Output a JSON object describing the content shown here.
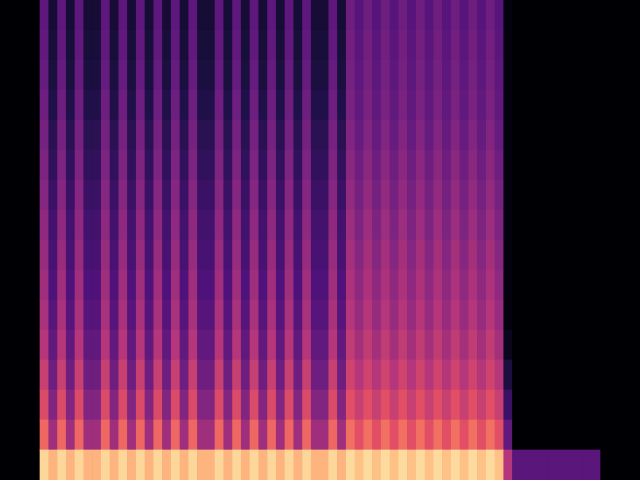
{
  "chart_data": {
    "type": "heatmap",
    "xlim": [
      0,
      64
    ],
    "ylim": [
      0,
      16
    ],
    "tick_labels": false,
    "grid": false,
    "color_range": [
      0,
      1
    ],
    "cells": [
      [
        0.92,
        0.85,
        0.92,
        0.85,
        0.92,
        0.85,
        0.85,
        0.92,
        0.85,
        0.92,
        0.85,
        0.92,
        0.85,
        0.92,
        0.85,
        0.92,
        0.85,
        0.92,
        0.85,
        0.85,
        0.92,
        0.85,
        0.92,
        0.85,
        0.92,
        0.85,
        0.92,
        0.85,
        0.92,
        0.85,
        0.92,
        0.85,
        0.85,
        0.92,
        0.85,
        0.93,
        0.88,
        0.93,
        0.88,
        0.93,
        0.88,
        0.93,
        0.88,
        0.93,
        0.88,
        0.93,
        0.88,
        0.93,
        0.88,
        0.93,
        0.88,
        0.93,
        0.88,
        0.5,
        0.28,
        0.28,
        0.28,
        0.28,
        0.28,
        0.28,
        0.28,
        0.28,
        0.28,
        0.28
      ],
      [
        0.68,
        0.45,
        0.68,
        0.45,
        0.68,
        0.45,
        0.45,
        0.68,
        0.45,
        0.68,
        0.45,
        0.68,
        0.45,
        0.68,
        0.45,
        0.68,
        0.45,
        0.68,
        0.45,
        0.45,
        0.68,
        0.45,
        0.68,
        0.45,
        0.68,
        0.45,
        0.68,
        0.45,
        0.68,
        0.45,
        0.68,
        0.45,
        0.45,
        0.68,
        0.45,
        0.7,
        0.62,
        0.7,
        0.62,
        0.7,
        0.62,
        0.7,
        0.62,
        0.7,
        0.62,
        0.7,
        0.62,
        0.7,
        0.62,
        0.7,
        0.62,
        0.7,
        0.62,
        0.3,
        0,
        0,
        0,
        0,
        0,
        0,
        0,
        0,
        0,
        0
      ],
      [
        0.6,
        0.38,
        0.6,
        0.38,
        0.6,
        0.38,
        0.38,
        0.6,
        0.38,
        0.6,
        0.38,
        0.6,
        0.38,
        0.6,
        0.38,
        0.6,
        0.38,
        0.6,
        0.38,
        0.38,
        0.6,
        0.38,
        0.6,
        0.38,
        0.6,
        0.38,
        0.6,
        0.38,
        0.6,
        0.38,
        0.6,
        0.38,
        0.38,
        0.6,
        0.38,
        0.62,
        0.55,
        0.62,
        0.55,
        0.62,
        0.55,
        0.62,
        0.55,
        0.62,
        0.55,
        0.62,
        0.55,
        0.62,
        0.55,
        0.62,
        0.55,
        0.62,
        0.55,
        0.2,
        0,
        0,
        0,
        0,
        0,
        0,
        0,
        0,
        0,
        0
      ],
      [
        0.55,
        0.33,
        0.55,
        0.33,
        0.55,
        0.33,
        0.33,
        0.55,
        0.33,
        0.55,
        0.33,
        0.55,
        0.33,
        0.55,
        0.33,
        0.55,
        0.33,
        0.55,
        0.33,
        0.33,
        0.55,
        0.33,
        0.55,
        0.33,
        0.55,
        0.33,
        0.55,
        0.33,
        0.55,
        0.33,
        0.55,
        0.33,
        0.33,
        0.55,
        0.33,
        0.57,
        0.5,
        0.57,
        0.5,
        0.57,
        0.5,
        0.57,
        0.5,
        0.57,
        0.5,
        0.57,
        0.5,
        0.57,
        0.5,
        0.57,
        0.5,
        0.57,
        0.5,
        0.12,
        0,
        0,
        0,
        0,
        0,
        0,
        0,
        0,
        0,
        0
      ],
      [
        0.5,
        0.3,
        0.5,
        0.3,
        0.5,
        0.3,
        0.3,
        0.5,
        0.3,
        0.5,
        0.3,
        0.5,
        0.3,
        0.5,
        0.3,
        0.5,
        0.3,
        0.5,
        0.3,
        0.3,
        0.5,
        0.3,
        0.5,
        0.3,
        0.5,
        0.3,
        0.5,
        0.3,
        0.5,
        0.3,
        0.5,
        0.3,
        0.3,
        0.5,
        0.3,
        0.53,
        0.46,
        0.53,
        0.46,
        0.53,
        0.46,
        0.53,
        0.46,
        0.53,
        0.46,
        0.53,
        0.46,
        0.53,
        0.46,
        0.53,
        0.46,
        0.53,
        0.46,
        0.05,
        0,
        0,
        0,
        0,
        0,
        0,
        0,
        0,
        0,
        0
      ],
      [
        0.47,
        0.27,
        0.47,
        0.27,
        0.47,
        0.27,
        0.27,
        0.47,
        0.27,
        0.47,
        0.27,
        0.47,
        0.27,
        0.47,
        0.27,
        0.47,
        0.27,
        0.47,
        0.27,
        0.27,
        0.47,
        0.27,
        0.47,
        0.27,
        0.47,
        0.27,
        0.47,
        0.27,
        0.47,
        0.27,
        0.47,
        0.27,
        0.27,
        0.47,
        0.27,
        0.5,
        0.43,
        0.5,
        0.43,
        0.5,
        0.43,
        0.5,
        0.43,
        0.5,
        0.43,
        0.5,
        0.43,
        0.5,
        0.43,
        0.5,
        0.43,
        0.5,
        0.43,
        0.02,
        0,
        0,
        0,
        0,
        0,
        0,
        0,
        0,
        0,
        0
      ],
      [
        0.45,
        0.25,
        0.45,
        0.25,
        0.45,
        0.25,
        0.25,
        0.45,
        0.25,
        0.45,
        0.25,
        0.45,
        0.25,
        0.45,
        0.25,
        0.45,
        0.25,
        0.45,
        0.25,
        0.25,
        0.45,
        0.25,
        0.45,
        0.25,
        0.45,
        0.25,
        0.45,
        0.25,
        0.45,
        0.25,
        0.45,
        0.25,
        0.25,
        0.45,
        0.25,
        0.48,
        0.41,
        0.48,
        0.41,
        0.48,
        0.41,
        0.48,
        0.41,
        0.48,
        0.41,
        0.48,
        0.41,
        0.48,
        0.41,
        0.48,
        0.41,
        0.48,
        0.41,
        0.02,
        0,
        0,
        0,
        0,
        0,
        0,
        0,
        0,
        0,
        0
      ],
      [
        0.43,
        0.23,
        0.43,
        0.23,
        0.43,
        0.23,
        0.23,
        0.43,
        0.23,
        0.43,
        0.23,
        0.43,
        0.23,
        0.43,
        0.23,
        0.43,
        0.23,
        0.43,
        0.23,
        0.23,
        0.43,
        0.23,
        0.43,
        0.23,
        0.43,
        0.23,
        0.43,
        0.23,
        0.43,
        0.23,
        0.43,
        0.23,
        0.23,
        0.43,
        0.23,
        0.46,
        0.39,
        0.46,
        0.39,
        0.46,
        0.39,
        0.46,
        0.39,
        0.46,
        0.39,
        0.46,
        0.39,
        0.46,
        0.39,
        0.46,
        0.39,
        0.46,
        0.39,
        0.02,
        0,
        0,
        0,
        0,
        0,
        0,
        0,
        0,
        0,
        0
      ],
      [
        0.41,
        0.22,
        0.41,
        0.22,
        0.41,
        0.22,
        0.22,
        0.41,
        0.22,
        0.41,
        0.22,
        0.41,
        0.22,
        0.41,
        0.22,
        0.41,
        0.22,
        0.41,
        0.22,
        0.22,
        0.41,
        0.22,
        0.41,
        0.22,
        0.41,
        0.22,
        0.41,
        0.22,
        0.41,
        0.22,
        0.41,
        0.22,
        0.22,
        0.41,
        0.22,
        0.44,
        0.37,
        0.44,
        0.37,
        0.44,
        0.37,
        0.44,
        0.37,
        0.44,
        0.37,
        0.44,
        0.37,
        0.44,
        0.37,
        0.44,
        0.37,
        0.44,
        0.37,
        0.02,
        0,
        0,
        0,
        0,
        0,
        0,
        0,
        0,
        0,
        0
      ],
      [
        0.39,
        0.2,
        0.39,
        0.2,
        0.39,
        0.2,
        0.2,
        0.39,
        0.2,
        0.39,
        0.2,
        0.39,
        0.2,
        0.39,
        0.2,
        0.39,
        0.2,
        0.39,
        0.2,
        0.2,
        0.39,
        0.2,
        0.39,
        0.2,
        0.39,
        0.2,
        0.39,
        0.2,
        0.39,
        0.2,
        0.39,
        0.2,
        0.2,
        0.39,
        0.2,
        0.42,
        0.35,
        0.42,
        0.35,
        0.42,
        0.35,
        0.42,
        0.35,
        0.42,
        0.35,
        0.42,
        0.35,
        0.42,
        0.35,
        0.42,
        0.35,
        0.42,
        0.35,
        0.02,
        0,
        0,
        0,
        0,
        0,
        0,
        0,
        0,
        0,
        0
      ],
      [
        0.37,
        0.18,
        0.37,
        0.18,
        0.37,
        0.18,
        0.18,
        0.37,
        0.18,
        0.37,
        0.18,
        0.37,
        0.18,
        0.37,
        0.18,
        0.37,
        0.18,
        0.37,
        0.18,
        0.18,
        0.37,
        0.18,
        0.37,
        0.18,
        0.37,
        0.18,
        0.37,
        0.18,
        0.37,
        0.18,
        0.37,
        0.18,
        0.18,
        0.37,
        0.18,
        0.4,
        0.33,
        0.4,
        0.33,
        0.4,
        0.33,
        0.4,
        0.33,
        0.4,
        0.33,
        0.4,
        0.33,
        0.4,
        0.33,
        0.4,
        0.33,
        0.4,
        0.33,
        0.02,
        0,
        0,
        0,
        0,
        0,
        0,
        0,
        0,
        0,
        0
      ],
      [
        0.35,
        0.16,
        0.35,
        0.16,
        0.35,
        0.16,
        0.16,
        0.35,
        0.16,
        0.35,
        0.16,
        0.35,
        0.16,
        0.35,
        0.16,
        0.35,
        0.16,
        0.35,
        0.16,
        0.16,
        0.35,
        0.16,
        0.35,
        0.16,
        0.35,
        0.16,
        0.35,
        0.16,
        0.35,
        0.16,
        0.35,
        0.16,
        0.16,
        0.35,
        0.16,
        0.38,
        0.31,
        0.38,
        0.31,
        0.38,
        0.31,
        0.38,
        0.31,
        0.38,
        0.31,
        0.38,
        0.31,
        0.38,
        0.31,
        0.38,
        0.31,
        0.38,
        0.31,
        0.02,
        0,
        0,
        0,
        0,
        0,
        0,
        0,
        0,
        0,
        0
      ],
      [
        0.33,
        0.14,
        0.33,
        0.14,
        0.33,
        0.14,
        0.14,
        0.33,
        0.14,
        0.33,
        0.14,
        0.33,
        0.14,
        0.33,
        0.14,
        0.33,
        0.14,
        0.33,
        0.14,
        0.14,
        0.33,
        0.14,
        0.33,
        0.14,
        0.33,
        0.14,
        0.33,
        0.14,
        0.33,
        0.14,
        0.33,
        0.14,
        0.14,
        0.33,
        0.14,
        0.36,
        0.3,
        0.36,
        0.3,
        0.36,
        0.3,
        0.36,
        0.3,
        0.36,
        0.3,
        0.36,
        0.3,
        0.36,
        0.3,
        0.36,
        0.3,
        0.36,
        0.3,
        0.02,
        0,
        0,
        0,
        0,
        0,
        0,
        0,
        0,
        0,
        0
      ],
      [
        0.31,
        0.12,
        0.31,
        0.12,
        0.31,
        0.12,
        0.12,
        0.31,
        0.12,
        0.31,
        0.12,
        0.31,
        0.12,
        0.31,
        0.12,
        0.31,
        0.12,
        0.31,
        0.12,
        0.12,
        0.31,
        0.12,
        0.31,
        0.12,
        0.31,
        0.12,
        0.31,
        0.12,
        0.31,
        0.12,
        0.31,
        0.12,
        0.12,
        0.31,
        0.12,
        0.35,
        0.29,
        0.35,
        0.29,
        0.35,
        0.29,
        0.35,
        0.29,
        0.35,
        0.29,
        0.35,
        0.29,
        0.35,
        0.29,
        0.35,
        0.29,
        0.35,
        0.29,
        0.02,
        0,
        0,
        0,
        0,
        0,
        0,
        0,
        0,
        0,
        0
      ],
      [
        0.3,
        0.11,
        0.3,
        0.11,
        0.3,
        0.11,
        0.11,
        0.3,
        0.11,
        0.3,
        0.11,
        0.3,
        0.11,
        0.3,
        0.11,
        0.3,
        0.11,
        0.3,
        0.11,
        0.11,
        0.3,
        0.11,
        0.3,
        0.11,
        0.3,
        0.11,
        0.3,
        0.11,
        0.3,
        0.11,
        0.3,
        0.11,
        0.11,
        0.3,
        0.11,
        0.34,
        0.28,
        0.34,
        0.28,
        0.34,
        0.28,
        0.34,
        0.28,
        0.34,
        0.28,
        0.34,
        0.28,
        0.34,
        0.28,
        0.34,
        0.28,
        0.34,
        0.28,
        0.02,
        0,
        0,
        0,
        0,
        0,
        0,
        0,
        0,
        0,
        0
      ],
      [
        0.29,
        0.1,
        0.29,
        0.1,
        0.29,
        0.1,
        0.1,
        0.29,
        0.1,
        0.29,
        0.1,
        0.29,
        0.1,
        0.29,
        0.1,
        0.29,
        0.1,
        0.29,
        0.1,
        0.1,
        0.29,
        0.1,
        0.29,
        0.1,
        0.29,
        0.1,
        0.29,
        0.1,
        0.29,
        0.1,
        0.29,
        0.1,
        0.1,
        0.29,
        0.1,
        0.33,
        0.27,
        0.33,
        0.27,
        0.33,
        0.27,
        0.33,
        0.27,
        0.33,
        0.27,
        0.33,
        0.27,
        0.33,
        0.27,
        0.33,
        0.27,
        0.33,
        0.27,
        0.02,
        0,
        0,
        0,
        0,
        0,
        0,
        0,
        0,
        0,
        0
      ]
    ]
  }
}
